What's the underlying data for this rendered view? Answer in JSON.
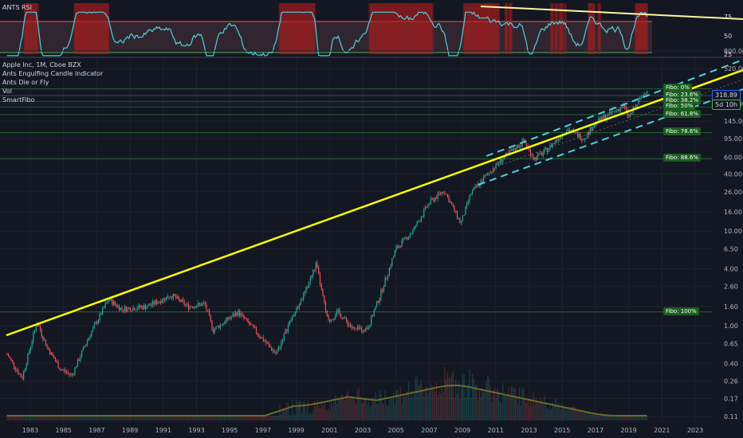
{
  "rsi_panel": {
    "title": "ANTS RSI",
    "ticks": [
      "75",
      "50",
      "25"
    ],
    "upper_level": 75,
    "lower_level": 25
  },
  "main_panel": {
    "symbol_line": "Apple Inc, 1M, Cboe BZX",
    "indicators": [
      "Ants Engulfing Candle Indicator",
      "Ants Die or Fly",
      "Vol",
      "SmartFibo"
    ],
    "last_price": "318.89",
    "countdown": "5d 10h",
    "y_ticks": [
      "800.00",
      "520.00",
      "318.89",
      "220.00",
      "145.00",
      "95.00",
      "60.00",
      "40.00",
      "26.00",
      "16.00",
      "10.00",
      "6.50",
      "4.00",
      "2.60",
      "1.60",
      "1.00",
      "0.65",
      "0.40",
      "0.26",
      "0.17",
      "0.11"
    ],
    "x_ticks": [
      "1983",
      "1985",
      "1987",
      "1989",
      "1991",
      "1993",
      "1995",
      "1997",
      "1999",
      "2001",
      "2003",
      "2005",
      "2007",
      "2009",
      "2011",
      "2013",
      "2015",
      "2017",
      "2019",
      "2021",
      "2023"
    ],
    "fibo_labels": [
      {
        "text": "Fibo:  0%",
        "price": 318.89
      },
      {
        "text": "Fibo: 23.6%",
        "price": 270
      },
      {
        "text": "Fibo: 38.2%",
        "price": 235
      },
      {
        "text": "Fibo:  50%",
        "price": 205
      },
      {
        "text": "Fibo: 61.8%",
        "price": 170
      },
      {
        "text": "Fibo: 78.6%",
        "price": 110
      },
      {
        "text": "Fibo: 88.6%",
        "price": 58
      },
      {
        "text": "Fibo:  100%",
        "price": 1.4
      }
    ]
  },
  "colors": {
    "background": "#131722",
    "up_candle": "#26a69a",
    "down_candle": "#ef5350",
    "trendline": "#ffff00",
    "channel": "#4dd0e1",
    "fibo_green": "#4caf50",
    "rsi_line": "#4dd0e1",
    "volume_ma": "#808000"
  },
  "chart_data": {
    "type": "candlestick",
    "title": "Apple Inc, 1M, Cboe BZX",
    "scale": "log",
    "ylim": [
      0.1,
      800
    ],
    "xlim": [
      1981.6,
      2024.6
    ],
    "series": [
      {
        "name": "Apple Inc",
        "x": [
          1981.6,
          1982.5,
          1983.4,
          1984,
          1984.8,
          1985.5,
          1986.5,
          1987.7,
          1988.5,
          1990,
          1991.5,
          1992.5,
          1993.5,
          1994,
          1995.5,
          1996.5,
          1997.8,
          1998.5,
          1999.5,
          2000.2,
          2000.9,
          2001.5,
          2002.5,
          2003.3,
          2004,
          2005,
          2006,
          2007,
          2007.9,
          2008.9,
          2009.5,
          2010.5,
          2011.5,
          2012.7,
          2013.3,
          2014,
          2015.3,
          2016.3,
          2017,
          2018.7,
          2019,
          2020.1
        ],
        "y": [
          0.5,
          0.28,
          1.1,
          0.6,
          0.35,
          0.3,
          0.75,
          1.9,
          1.5,
          1.6,
          2.1,
          1.6,
          1.7,
          0.9,
          1.4,
          0.9,
          0.5,
          1.0,
          2.2,
          4.5,
          1.1,
          1.4,
          0.9,
          0.95,
          2.0,
          6.5,
          10,
          20,
          27,
          12,
          25,
          40,
          60,
          90,
          58,
          70,
          120,
          95,
          140,
          210,
          160,
          318.89
        ]
      }
    ],
    "annotations": [
      "Fibo:  0%",
      "Fibo: 23.6%",
      "Fibo: 38.2%",
      "Fibo:  50%",
      "Fibo: 61.8%",
      "Fibo: 78.6%",
      "Fibo: 88.6%",
      "Fibo:  100%"
    ]
  }
}
